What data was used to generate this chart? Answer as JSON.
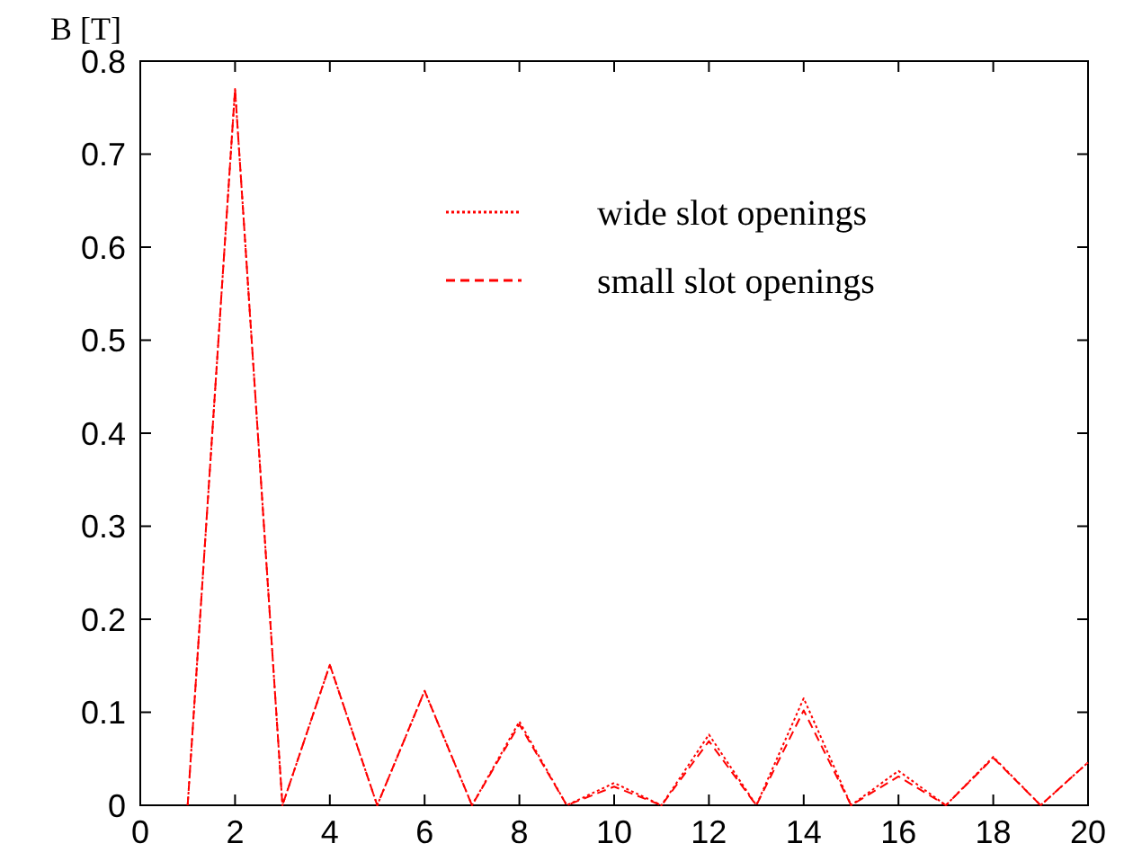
{
  "chart_data": {
    "type": "line",
    "ylabel": "B [T]",
    "x": [
      1,
      2,
      3,
      4,
      5,
      6,
      7,
      8,
      9,
      10,
      11,
      12,
      13,
      14,
      15,
      16,
      17,
      18,
      19,
      20
    ],
    "series": [
      {
        "name": "wide slot openings",
        "color": "#ff0000",
        "line_style": "dotted",
        "values": [
          0,
          0.77,
          0,
          0.151,
          0,
          0.123,
          0,
          0.09,
          0,
          0.024,
          0,
          0.076,
          0,
          0.115,
          0,
          0.037,
          0,
          0.052,
          0,
          0.046
        ]
      },
      {
        "name": "small slot openings",
        "color": "#ff0000",
        "line_style": "dashed",
        "values": [
          0,
          0.77,
          0,
          0.151,
          0,
          0.123,
          0,
          0.087,
          0,
          0.02,
          0,
          0.069,
          0,
          0.102,
          0,
          0.031,
          0,
          0.051,
          0,
          0.046
        ]
      }
    ],
    "xlim": [
      0,
      20
    ],
    "xticks": [
      0,
      2,
      4,
      6,
      8,
      10,
      12,
      14,
      16,
      18,
      20
    ],
    "ylim": [
      0,
      0.8
    ],
    "yticks": [
      0,
      0.1,
      0.2,
      0.3,
      0.4,
      0.5,
      0.6,
      0.7,
      0.8
    ],
    "grid": false,
    "legend": "top right",
    "marker": "none"
  }
}
